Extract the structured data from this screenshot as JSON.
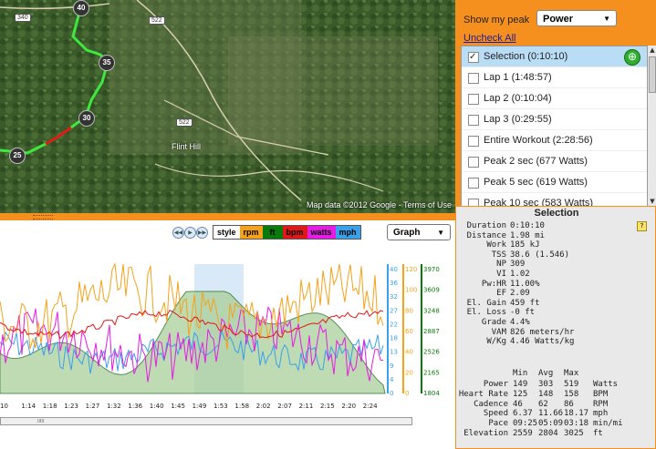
{
  "map": {
    "credit": "Map data ©2012  Google - Terms of Use",
    "town_label": "Flint Hill",
    "road_shields": [
      "340",
      "522",
      "522"
    ],
    "markers": [
      "40",
      "35",
      "30",
      "25"
    ]
  },
  "peak": {
    "label": "Show my peak",
    "selected": "Power",
    "uncheck_all": "Uncheck All"
  },
  "list": [
    {
      "label": "Selection (0:10:10)",
      "checked": true,
      "selected": true
    },
    {
      "label": "Lap 1 (1:48:57)",
      "checked": false
    },
    {
      "label": "Lap 2 (0:10:04)",
      "checked": false
    },
    {
      "label": "Lap 3 (0:29:55)",
      "checked": false
    },
    {
      "label": "Entire Workout (2:28:56)",
      "checked": false
    },
    {
      "label": "Peak  2 sec (677 Watts)",
      "checked": false
    },
    {
      "label": "Peak  5 sec (619 Watts)",
      "checked": false
    },
    {
      "label": "Peak  10 sec (583 Watts)",
      "checked": false
    }
  ],
  "selection": {
    "title": "Selection",
    "stats": [
      {
        "label": "Duration",
        "value": "0:10:10"
      },
      {
        "label": "Distance",
        "value": "1.98 mi"
      },
      {
        "label": "Work",
        "value": "185 kJ"
      },
      {
        "label": "TSS",
        "value": "38.6 (1.546)"
      },
      {
        "label": "NP",
        "value": "309"
      },
      {
        "label": "VI",
        "value": "1.02"
      },
      {
        "label": "Pw:HR",
        "value": "11.00%"
      },
      {
        "label": "EF",
        "value": "2.09"
      },
      {
        "label": "El. Gain",
        "value": "459 ft"
      },
      {
        "label": "El. Loss",
        "value": "-0 ft"
      },
      {
        "label": "Grade",
        "value": "4.4%"
      },
      {
        "label": "VAM",
        "value": "826 meters/hr"
      },
      {
        "label": "W/Kg",
        "value": "4.46 Watts/kg"
      }
    ],
    "table_header": [
      "Min",
      "Avg",
      "Max"
    ],
    "table": [
      {
        "label": "Power",
        "min": "149",
        "avg": "303",
        "max": "519",
        "unit": "Watts"
      },
      {
        "label": "Heart Rate",
        "min": "125",
        "avg": "148",
        "max": "158",
        "unit": "BPM"
      },
      {
        "label": "Cadence",
        "min": "46",
        "avg": "62",
        "max": "86",
        "unit": "RPM"
      },
      {
        "label": "Speed",
        "min": "6.37",
        "avg": "11.66",
        "max": "18.17",
        "unit": "mph"
      },
      {
        "label": "Pace",
        "min": "09:25",
        "avg": "05:09",
        "max": "03:18",
        "unit": "min/mi"
      },
      {
        "label": "Elevation",
        "min": "2559",
        "avg": "2804",
        "max": "3025",
        "unit": "ft"
      }
    ]
  },
  "toolbar": {
    "legend": [
      {
        "label": "style",
        "bg": "#ffffff",
        "color": "#000000"
      },
      {
        "label": "rpm",
        "bg": "#f4a21b",
        "color": "#000000"
      },
      {
        "label": "ft",
        "bg": "#0a7a0a",
        "color": "#000000"
      },
      {
        "label": "bpm",
        "bg": "#e01818",
        "color": "#000000"
      },
      {
        "label": "watts",
        "bg": "#e41ce4",
        "color": "#000000"
      },
      {
        "label": "mph",
        "bg": "#3aa0ea",
        "color": "#000000"
      }
    ],
    "graph_select": "Graph"
  },
  "chart_data": {
    "type": "line",
    "x_ticks": [
      "10",
      "1:14",
      "1:18",
      "1:23",
      "1:27",
      "1:32",
      "1:36",
      "1:40",
      "1:45",
      "1:49",
      "1:53",
      "1:58",
      "2:02",
      "2:07",
      "2:11",
      "2:15",
      "2:20",
      "2:24"
    ],
    "axis_mph": [
      "40",
      "36",
      "32",
      "27",
      "22",
      "18",
      "13",
      "9",
      "4",
      "0"
    ],
    "axis_rpm": [
      "120",
      "100",
      "80",
      "60",
      "40",
      "20",
      "0"
    ],
    "axis_ft": [
      "3970",
      "3609",
      "3248",
      "2887",
      "2526",
      "2165",
      "1804"
    ],
    "colors": {
      "rpm": "#f4a21b",
      "ft": "#0a7a0a",
      "bpm": "#e01818",
      "watts": "#e41ce4",
      "mph": "#3aa0ea"
    }
  }
}
